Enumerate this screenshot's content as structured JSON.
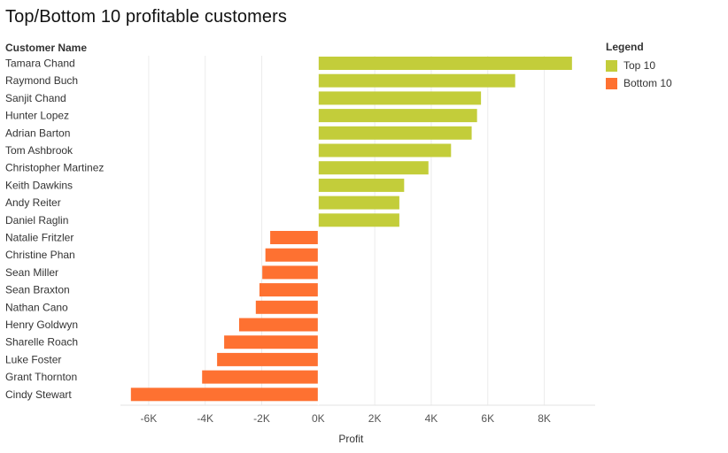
{
  "title": "Top/Bottom 10 profitable customers",
  "row_header": "Customer Name",
  "legend": {
    "title": "Legend",
    "items": [
      {
        "label": "Top 10",
        "color": "#c3cd3a"
      },
      {
        "label": "Bottom 10",
        "color": "#fe7131"
      }
    ]
  },
  "chart_data": {
    "type": "bar",
    "orientation": "horizontal",
    "title": "Top/Bottom 10 profitable customers",
    "xlabel": "Profit",
    "ylabel": "Customer Name",
    "xlim": [
      -7000,
      9800
    ],
    "xticks": [
      -6000,
      -4000,
      -2000,
      0,
      2000,
      4000,
      6000,
      8000
    ],
    "xtick_labels": [
      "-6K",
      "-4K",
      "-2K",
      "0K",
      "2K",
      "4K",
      "6K",
      "8K"
    ],
    "grid": "vertical",
    "legend_position": "right",
    "categories": [
      "Tamara Chand",
      "Raymond Buch",
      "Sanjit Chand",
      "Hunter Lopez",
      "Adrian Barton",
      "Tom Ashbrook",
      "Christopher Martinez",
      "Keith Dawkins",
      "Andy Reiter",
      "Daniel Raglin",
      "Natalie Fritzler",
      "Christine Phan",
      "Sean Miller",
      "Sean Braxton",
      "Nathan Cano",
      "Henry Goldwyn",
      "Sharelle Roach",
      "Luke Foster",
      "Grant Thornton",
      "Cindy Stewart"
    ],
    "values": [
      8980,
      6970,
      5760,
      5620,
      5430,
      4700,
      3900,
      3040,
      2870,
      2870,
      -1700,
      -1870,
      -1980,
      -2080,
      -2210,
      -2800,
      -3330,
      -3580,
      -4110,
      -6630
    ],
    "groups": [
      "Top 10",
      "Top 10",
      "Top 10",
      "Top 10",
      "Top 10",
      "Top 10",
      "Top 10",
      "Top 10",
      "Top 10",
      "Top 10",
      "Bottom 10",
      "Bottom 10",
      "Bottom 10",
      "Bottom 10",
      "Bottom 10",
      "Bottom 10",
      "Bottom 10",
      "Bottom 10",
      "Bottom 10",
      "Bottom 10"
    ],
    "colors": {
      "Top 10": "#c3cd3a",
      "Bottom 10": "#fe7131"
    }
  }
}
